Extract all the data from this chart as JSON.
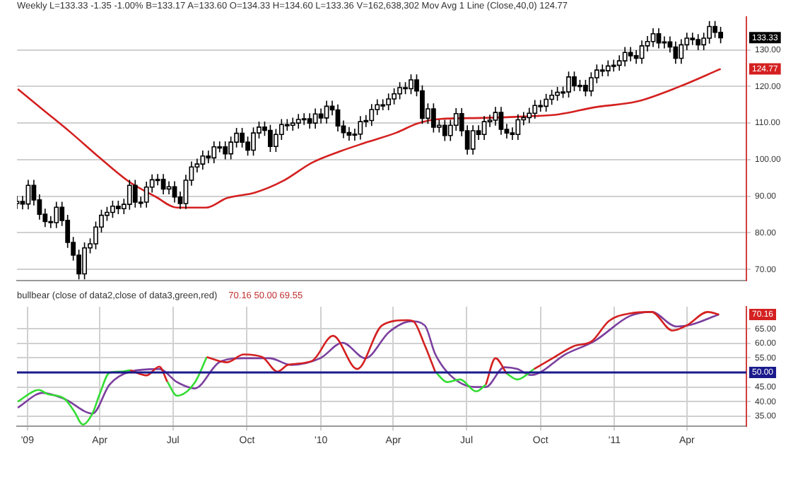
{
  "chart_data": [
    {
      "type": "candlestick",
      "title": "Weekly  L=133.33 -1.35 -1.00% B=133.17 A=133.60 O=134.33 H=134.60 L=133.36 V=162,638,302 Mov Avg 1 Line (Close,40,0) 124.77",
      "color": "#000000",
      "colors": [
        "#ffffff",
        "#000000",
        "#ffffff",
        "#000000",
        "#000000",
        "#000000",
        "#000000",
        "#ffffff",
        "#000000",
        "#000000",
        "#000000",
        "#000000",
        "#ffffff",
        "#ffffff",
        "#ffffff",
        "#ffffff",
        "#ffffff",
        "#ffffff",
        "#000000",
        "#ffffff",
        "#ffffff",
        "#000000",
        "#ffffff",
        "#ffffff",
        "#ffffff",
        "#ffffff",
        "#000000",
        "#ffffff",
        "#000000",
        "#000000",
        "#ffffff",
        "#ffffff",
        "#ffffff",
        "#ffffff",
        "#000000",
        "#ffffff",
        "#ffffff",
        "#000000",
        "#ffffff",
        "#ffffff",
        "#000000",
        "#000000",
        "#ffffff",
        "#ffffff",
        "#000000",
        "#000000",
        "#ffffff",
        "#ffffff",
        "#000000",
        "#ffffff",
        "#ffffff",
        "#ffffff",
        "#000000",
        "#ffffff",
        "#000000",
        "#ffffff",
        "#000000",
        "#000000",
        "#000000",
        "#000000",
        "#ffffff",
        "#ffffff",
        "#ffffff",
        "#ffffff",
        "#ffffff",
        "#ffffff",
        "#ffffff",
        "#ffffff",
        "#ffffff",
        "#000000",
        "#ffffff",
        "#000000",
        "#000000",
        "#ffffff",
        "#000000",
        "#ffffff",
        "#000000",
        "#ffffff",
        "#ffffff",
        "#000000",
        "#000000",
        "#ffffff",
        "#000000",
        "#ffffff",
        "#ffffff",
        "#ffffff",
        "#000000",
        "#000000",
        "#000000",
        "#ffffff",
        "#ffffff",
        "#ffffff",
        "#ffffff",
        "#000000",
        "#ffffff",
        "#ffffff",
        "#ffffff",
        "#ffffff",
        "#ffffff",
        "#000000",
        "#ffffff",
        "#000000",
        "#ffffff",
        "#ffffff",
        "#000000",
        "#ffffff",
        "#ffffff",
        "#ffffff",
        "#ffffff",
        "#000000",
        "#000000",
        "#ffffff",
        "#ffffff",
        "#ffffff",
        "#000000",
        "#ffffff",
        "#000000",
        "#000000",
        "#ffffff",
        "#ffffff",
        "#000000",
        "#000000",
        "#ffffff",
        "#ffffff",
        "#000000",
        "#000000"
      ],
      "x": [
        "2008-12-19",
        "2008-12-26",
        "2009-01-02",
        "2009-01-09",
        "2009-01-16",
        "2009-01-23",
        "2009-01-30",
        "2009-02-06",
        "2009-02-13",
        "2009-02-20",
        "2009-02-27",
        "2009-03-06",
        "2009-03-13",
        "2009-03-20",
        "2009-03-27",
        "2009-04-03",
        "2009-04-10",
        "2009-04-17",
        "2009-04-24",
        "2009-05-01",
        "2009-05-08",
        "2009-05-15",
        "2009-05-22",
        "2009-05-29",
        "2009-06-05",
        "2009-06-12",
        "2009-06-19",
        "2009-06-26",
        "2009-07-03",
        "2009-07-10",
        "2009-07-17",
        "2009-07-24",
        "2009-07-31",
        "2009-08-07",
        "2009-08-14",
        "2009-08-21",
        "2009-08-28",
        "2009-09-04",
        "2009-09-11",
        "2009-09-18",
        "2009-09-25",
        "2009-10-02",
        "2009-10-09",
        "2009-10-16",
        "2009-10-23",
        "2009-10-30",
        "2009-11-06",
        "2009-11-13",
        "2009-11-20",
        "2009-11-27",
        "2009-12-04",
        "2009-12-11",
        "2009-12-18",
        "2009-12-25",
        "2010-01-01",
        "2010-01-08",
        "2010-01-15",
        "2010-01-22",
        "2010-01-29",
        "2010-02-05",
        "2010-02-12",
        "2010-02-19",
        "2010-02-26",
        "2010-03-05",
        "2010-03-12",
        "2010-03-19",
        "2010-03-26",
        "2010-04-02",
        "2010-04-09",
        "2010-04-16",
        "2010-04-23",
        "2010-04-30",
        "2010-05-07",
        "2010-05-14",
        "2010-05-21",
        "2010-05-28",
        "2010-06-04",
        "2010-06-11",
        "2010-06-18",
        "2010-06-25",
        "2010-07-02",
        "2010-07-09",
        "2010-07-16",
        "2010-07-23",
        "2010-07-30",
        "2010-08-06",
        "2010-08-13",
        "2010-08-20",
        "2010-08-27",
        "2010-09-03",
        "2010-09-10",
        "2010-09-17",
        "2010-09-24",
        "2010-10-01",
        "2010-10-08",
        "2010-10-15",
        "2010-10-22",
        "2010-10-29",
        "2010-11-05",
        "2010-11-12",
        "2010-11-19",
        "2010-11-26",
        "2010-12-03",
        "2010-12-10",
        "2010-12-17",
        "2010-12-24",
        "2010-12-31",
        "2011-01-07",
        "2011-01-14",
        "2011-01-21",
        "2011-01-28",
        "2011-02-04",
        "2011-02-11",
        "2011-02-18",
        "2011-02-25",
        "2011-03-04",
        "2011-03-11",
        "2011-03-18",
        "2011-03-25",
        "2011-04-01",
        "2011-04-08",
        "2011-04-15",
        "2011-04-22",
        "2011-04-29",
        "2011-05-06",
        "2011-05-13"
      ],
      "ohlc": [
        [
          88.0,
          90.1,
          86.5,
          88.6
        ],
        [
          88.6,
          90.1,
          86.4,
          87.9
        ],
        [
          87.9,
          94.5,
          86.4,
          93.0
        ],
        [
          93.0,
          94.5,
          87.5,
          89.0
        ],
        [
          89.0,
          90.5,
          83.6,
          85.1
        ],
        [
          85.1,
          86.6,
          81.6,
          83.1
        ],
        [
          83.1,
          84.6,
          81.3,
          82.8
        ],
        [
          82.8,
          88.5,
          81.3,
          87.0
        ],
        [
          87.0,
          88.5,
          81.9,
          83.4
        ],
        [
          83.4,
          84.9,
          75.9,
          77.4
        ],
        [
          77.4,
          78.9,
          72.4,
          73.9
        ],
        [
          73.9,
          75.4,
          67.3,
          68.8
        ],
        [
          68.8,
          77.4,
          67.3,
          75.9
        ],
        [
          75.9,
          78.5,
          74.4,
          77.0
        ],
        [
          77.0,
          83.1,
          75.5,
          81.6
        ],
        [
          81.6,
          86.3,
          80.1,
          84.8
        ],
        [
          84.8,
          87.1,
          83.3,
          85.6
        ],
        [
          85.6,
          88.8,
          84.1,
          87.3
        ],
        [
          87.3,
          88.8,
          85.1,
          86.6
        ],
        [
          86.6,
          89.3,
          85.1,
          87.8
        ],
        [
          87.8,
          94.5,
          86.3,
          93.0
        ],
        [
          93.0,
          94.5,
          86.9,
          88.4
        ],
        [
          88.4,
          89.9,
          86.9,
          88.4
        ],
        [
          88.4,
          94.0,
          86.9,
          92.5
        ],
        [
          92.5,
          96.0,
          91.0,
          94.5
        ],
        [
          94.5,
          96.1,
          93.0,
          94.6
        ],
        [
          94.6,
          96.1,
          90.5,
          92.0
        ],
        [
          92.0,
          94.1,
          90.5,
          92.6
        ],
        [
          92.6,
          94.1,
          88.3,
          89.8
        ],
        [
          89.8,
          91.3,
          86.5,
          88.0
        ],
        [
          88.0,
          95.9,
          86.5,
          94.4
        ],
        [
          94.4,
          99.5,
          92.9,
          98.0
        ],
        [
          98.0,
          100.3,
          96.5,
          98.8
        ],
        [
          98.8,
          102.5,
          97.3,
          101.0
        ],
        [
          101.0,
          102.5,
          99.0,
          100.5
        ],
        [
          100.5,
          105.0,
          99.0,
          103.5
        ],
        [
          103.5,
          105.0,
          102.0,
          103.5
        ],
        [
          103.5,
          105.0,
          100.1,
          101.6
        ],
        [
          101.6,
          106.3,
          100.1,
          104.8
        ],
        [
          104.8,
          108.7,
          103.3,
          107.2
        ],
        [
          107.2,
          108.7,
          103.3,
          104.8
        ],
        [
          104.8,
          106.3,
          101.1,
          102.6
        ],
        [
          102.6,
          108.8,
          101.1,
          107.3
        ],
        [
          107.3,
          110.4,
          105.8,
          108.9
        ],
        [
          108.9,
          110.4,
          106.5,
          108.0
        ],
        [
          108.0,
          109.5,
          102.1,
          103.6
        ],
        [
          103.6,
          108.4,
          102.1,
          106.9
        ],
        [
          106.9,
          111.1,
          105.4,
          109.6
        ],
        [
          109.6,
          111.1,
          107.9,
          109.4
        ],
        [
          109.4,
          111.5,
          107.9,
          110.0
        ],
        [
          110.0,
          112.5,
          108.5,
          111.0
        ],
        [
          111.0,
          112.7,
          109.5,
          111.2
        ],
        [
          111.2,
          112.7,
          108.5,
          110.0
        ],
        [
          110.0,
          114.0,
          108.5,
          112.5
        ],
        [
          112.5,
          114.0,
          109.9,
          111.4
        ],
        [
          111.4,
          116.1,
          109.9,
          114.6
        ],
        [
          114.6,
          116.1,
          112.1,
          113.6
        ],
        [
          113.6,
          115.1,
          107.7,
          109.2
        ],
        [
          109.2,
          110.7,
          105.9,
          107.4
        ],
        [
          107.4,
          108.9,
          105.2,
          106.7
        ],
        [
          106.7,
          108.5,
          105.2,
          107.0
        ],
        [
          107.0,
          111.9,
          105.5,
          110.4
        ],
        [
          110.4,
          112.2,
          108.9,
          110.7
        ],
        [
          110.7,
          115.2,
          109.2,
          113.7
        ],
        [
          113.7,
          116.5,
          112.2,
          115.0
        ],
        [
          115.0,
          116.5,
          113.5,
          115.0
        ],
        [
          115.0,
          118.1,
          113.5,
          116.6
        ],
        [
          116.6,
          119.5,
          115.1,
          118.0
        ],
        [
          118.0,
          121.2,
          116.5,
          119.7
        ],
        [
          119.7,
          121.2,
          117.9,
          119.4
        ],
        [
          119.4,
          123.3,
          117.9,
          121.8
        ],
        [
          121.8,
          123.3,
          117.3,
          118.8
        ],
        [
          118.8,
          120.3,
          109.8,
          111.3
        ],
        [
          111.3,
          115.4,
          109.8,
          113.9
        ],
        [
          113.9,
          115.4,
          107.4,
          108.9
        ],
        [
          108.9,
          110.9,
          107.4,
          109.4
        ],
        [
          109.4,
          110.9,
          105.1,
          106.6
        ],
        [
          106.6,
          110.9,
          105.1,
          109.4
        ],
        [
          109.4,
          114.1,
          107.9,
          112.6
        ],
        [
          112.6,
          114.1,
          106.4,
          107.9
        ],
        [
          107.9,
          109.4,
          101.4,
          102.9
        ],
        [
          102.9,
          109.4,
          101.4,
          107.9
        ],
        [
          107.9,
          109.4,
          105.4,
          106.9
        ],
        [
          106.9,
          111.9,
          105.4,
          110.4
        ],
        [
          110.4,
          112.3,
          108.9,
          110.8
        ],
        [
          110.8,
          114.4,
          109.3,
          112.9
        ],
        [
          112.9,
          114.4,
          106.8,
          108.3
        ],
        [
          108.3,
          109.8,
          105.8,
          107.3
        ],
        [
          107.3,
          108.8,
          105.4,
          106.9
        ],
        [
          106.9,
          112.4,
          105.4,
          110.9
        ],
        [
          110.9,
          113.0,
          109.4,
          111.5
        ],
        [
          111.5,
          114.2,
          110.0,
          112.7
        ],
        [
          112.7,
          116.3,
          111.2,
          114.8
        ],
        [
          114.8,
          116.3,
          113.1,
          114.6
        ],
        [
          114.6,
          118.0,
          113.1,
          116.5
        ],
        [
          116.5,
          119.1,
          115.0,
          117.6
        ],
        [
          117.6,
          119.9,
          116.1,
          118.4
        ],
        [
          118.4,
          120.0,
          116.9,
          118.5
        ],
        [
          118.5,
          124.1,
          117.0,
          122.6
        ],
        [
          122.6,
          124.1,
          118.7,
          120.2
        ],
        [
          120.2,
          121.8,
          118.7,
          120.3
        ],
        [
          120.3,
          121.8,
          117.3,
          118.8
        ],
        [
          118.8,
          123.9,
          117.3,
          122.4
        ],
        [
          122.4,
          126.0,
          120.9,
          124.5
        ],
        [
          124.5,
          126.0,
          122.8,
          124.3
        ],
        [
          124.3,
          127.1,
          122.8,
          125.6
        ],
        [
          125.6,
          127.3,
          124.1,
          125.8
        ],
        [
          125.8,
          128.5,
          124.3,
          127.0
        ],
        [
          127.0,
          130.8,
          125.5,
          129.3
        ],
        [
          129.3,
          130.8,
          126.9,
          128.4
        ],
        [
          128.4,
          129.9,
          126.2,
          127.7
        ],
        [
          127.7,
          132.6,
          126.2,
          131.1
        ],
        [
          131.1,
          133.8,
          129.6,
          132.3
        ],
        [
          132.3,
          135.9,
          130.8,
          134.4
        ],
        [
          134.4,
          135.9,
          130.4,
          131.9
        ],
        [
          131.9,
          133.7,
          130.4,
          132.2
        ],
        [
          132.2,
          133.7,
          129.3,
          130.8
        ],
        [
          130.8,
          132.3,
          126.2,
          127.7
        ],
        [
          127.7,
          132.9,
          126.2,
          131.4
        ],
        [
          131.4,
          134.7,
          129.9,
          133.2
        ],
        [
          133.2,
          134.7,
          131.3,
          132.8
        ],
        [
          132.8,
          134.3,
          129.9,
          131.4
        ],
        [
          131.4,
          134.7,
          129.9,
          133.2
        ],
        [
          133.2,
          137.9,
          131.7,
          136.4
        ],
        [
          136.4,
          137.9,
          133.3,
          134.8
        ],
        [
          134.8,
          136.3,
          131.8,
          133.33
        ]
      ],
      "series": [
        {
          "type": "line",
          "color": "#d42020",
          "x": [
            "2008-12-20",
            "2009-01-20",
            "2009-02-24",
            "2009-04-01",
            "2009-05-06",
            "2009-06-10",
            "2009-07-06",
            "2009-08-11",
            "2009-09-06",
            "2009-10-11",
            "2009-11-15",
            "2009-12-21",
            "2010-01-25",
            "2010-03-01",
            "2010-04-05",
            "2010-05-01",
            "2010-05-28",
            "2010-07-20",
            "2010-09-10",
            "2010-10-24",
            "2010-12-07",
            "2011-01-29",
            "2011-03-23",
            "2011-05-13"
          ],
          "values": [
            119.3,
            113.7,
            107.4,
            100.5,
            94.2,
            89.8,
            86.9,
            86.9,
            89.5,
            91,
            94.2,
            99.2,
            102.3,
            104.9,
            107.4,
            109.9,
            111.1,
            111.4,
            111.8,
            112.4,
            114.3,
            115.9,
            120,
            124.8
          ]
        }
      ],
      "xlim": [
        "2008-12-19",
        "2011-06-14"
      ],
      "xticks": [
        {
          "value": "2009-01-01",
          "label": null
        },
        {
          "value": "2009-04-01",
          "label": null
        },
        {
          "value": "2009-07-01",
          "label": null
        },
        {
          "value": "2009-10-01",
          "label": null
        },
        {
          "value": "2010-01-01",
          "label": null
        },
        {
          "value": "2010-04-01",
          "label": null
        },
        {
          "value": "2010-07-01",
          "label": null
        },
        {
          "value": "2010-10-01",
          "label": null
        },
        {
          "value": "2011-01-01",
          "label": null
        },
        {
          "value": "2011-04-01",
          "label": null
        }
      ],
      "ylim": [
        67,
        139
      ],
      "yticks": [
        {
          "value": 70,
          "label": "70.00"
        },
        {
          "value": 80,
          "label": "80.00"
        },
        {
          "value": 90,
          "label": "90.00"
        },
        {
          "value": 100,
          "label": "100.00"
        },
        {
          "value": 110,
          "label": "110.00"
        },
        {
          "value": 120,
          "label": "120.00"
        },
        {
          "value": 130,
          "label": "130.00"
        }
      ],
      "grid": true,
      "tick_labels": "y",
      "annotations": [
        "133.33",
        "124.77"
      ]
    },
    {
      "type": "line",
      "title": "bullbear (close of data2,close of data3,green,red)",
      "subtitle": "70.16  50.00  69.55",
      "series": [
        {
          "color": "#d42020",
          "x": [
            "2009-05-09",
            "2009-05-29",
            "2009-06-14",
            "2009-06-24",
            "2009-07-06",
            "2009-07-28",
            "2009-08-12",
            "2009-09-06",
            "2009-09-27",
            "2009-10-20",
            "2009-11-08",
            "2009-11-21",
            "2009-12-21",
            "2010-01-16",
            "2010-02-15",
            "2010-03-18",
            "2010-04-19",
            "2010-04-26",
            "2010-05-10",
            "2010-05-23",
            "2010-06-07",
            "2010-06-23",
            "2010-07-13",
            "2010-07-25",
            "2010-08-06",
            "2010-08-20",
            "2010-09-02",
            "2010-09-23",
            "2010-10-16",
            "2010-11-11",
            "2010-12-04",
            "2010-12-25",
            "2011-01-20",
            "2011-02-16",
            "2011-03-14",
            "2011-04-01",
            "2011-04-27",
            "2011-05-11"
          ],
          "values": [
            50.8,
            49,
            52,
            46.8,
            null,
            null,
            55.3,
            53.5,
            56.2,
            55.3,
            50.3,
            52.6,
            54,
            62.6,
            51.2,
            66.2,
            68,
            67.6,
            59.4,
            50.3,
            null,
            null,
            null,
            45.8,
            54.9,
            49.6,
            null,
            51.2,
            54.9,
            59,
            60.8,
            67.7,
            70.3,
            70.8,
            64.4,
            66.2,
            70.8,
            69.9
          ]
        },
        {
          "color": "#33dd33",
          "x": [
            "2008-12-20",
            "2009-01-15",
            "2009-01-26",
            "2009-02-16",
            "2009-02-28",
            "2009-03-11",
            "2009-03-23",
            "2009-04-01",
            "2009-04-13",
            "2009-04-27",
            "2009-05-09",
            "2009-05-29",
            "2009-06-14",
            "2009-06-24",
            "2009-07-06",
            "2009-07-28",
            "2009-08-12",
            "2009-09-06",
            "2009-09-27",
            "2009-10-20",
            "2009-11-08",
            "2009-11-21",
            "2009-12-21",
            "2010-01-16",
            "2010-02-15",
            "2010-03-18",
            "2010-04-19",
            "2010-04-26",
            "2010-05-10",
            "2010-05-23",
            "2010-06-07",
            "2010-06-23",
            "2010-07-13",
            "2010-07-25",
            "2010-08-06",
            "2010-08-20",
            "2010-09-02",
            "2010-09-23"
          ],
          "values": [
            40,
            44,
            42.6,
            41,
            36.7,
            32.1,
            36,
            42.7,
            49.9,
            50.3,
            50.8,
            null,
            null,
            46.8,
            42,
            46.5,
            55.3,
            null,
            null,
            null,
            null,
            null,
            null,
            null,
            null,
            null,
            null,
            null,
            null,
            50.3,
            46.7,
            47.6,
            43.5,
            45.8,
            null,
            49.6,
            47.6,
            51.2
          ]
        },
        {
          "color": "#7b3f9e",
          "x": [
            "2008-12-20",
            "2009-01-20",
            "2009-02-16",
            "2009-03-23",
            "2009-04-13",
            "2009-05-09",
            "2009-06-14",
            "2009-07-06",
            "2009-07-28",
            "2009-08-28",
            "2009-09-27",
            "2009-10-29",
            "2009-11-25",
            "2009-12-31",
            "2010-01-28",
            "2010-02-25",
            "2010-03-27",
            "2010-04-23",
            "2010-05-10",
            "2010-05-23",
            "2010-06-11",
            "2010-07-11",
            "2010-07-25",
            "2010-08-17",
            "2010-09-02",
            "2010-09-19",
            "2010-11-02",
            "2010-12-07",
            "2011-01-20",
            "2011-02-16",
            "2011-03-19",
            "2011-04-06",
            "2011-05-11"
          ],
          "values": [
            37.9,
            43,
            40.9,
            35.9,
            45.8,
            50.3,
            51.2,
            46.7,
            44.5,
            53.6,
            54.9,
            54.9,
            52.6,
            54.9,
            60.2,
            54.9,
            64,
            67.6,
            66.2,
            56.4,
            49,
            45,
            45,
            51.8,
            51.2,
            49.1,
            56.4,
            60.8,
            69.4,
            70.8,
            65.8,
            66.4,
            70
          ]
        }
      ],
      "ref_lines": [
        {
          "axis": "y",
          "value": 50,
          "label": "50.00",
          "color": "#1a1a8c"
        }
      ],
      "xlim": [
        "2008-12-19",
        "2011-06-14"
      ],
      "xticks": [
        {
          "value": "2009-01-01",
          "label": "'09"
        },
        {
          "value": "2009-04-01",
          "label": "Apr"
        },
        {
          "value": "2009-07-01",
          "label": "Jul"
        },
        {
          "value": "2009-10-01",
          "label": "Oct"
        },
        {
          "value": "2010-01-01",
          "label": "'10"
        },
        {
          "value": "2010-04-01",
          "label": "Apr"
        },
        {
          "value": "2010-07-01",
          "label": "Jul"
        },
        {
          "value": "2010-10-01",
          "label": "Oct"
        },
        {
          "value": "2011-01-01",
          "label": "'11"
        },
        {
          "value": "2011-04-01",
          "label": "Apr"
        }
      ],
      "ylim": [
        31.5,
        72.6
      ],
      "yticks": [
        {
          "value": 35,
          "label": "35.00"
        },
        {
          "value": 40,
          "label": "40.00"
        },
        {
          "value": 45,
          "label": "45.00"
        },
        {
          "value": 55,
          "label": "55.00"
        },
        {
          "value": 60,
          "label": "60.00"
        },
        {
          "value": 65,
          "label": "65.00"
        }
      ],
      "grid": true,
      "annotations": [
        "70.16"
      ]
    }
  ]
}
